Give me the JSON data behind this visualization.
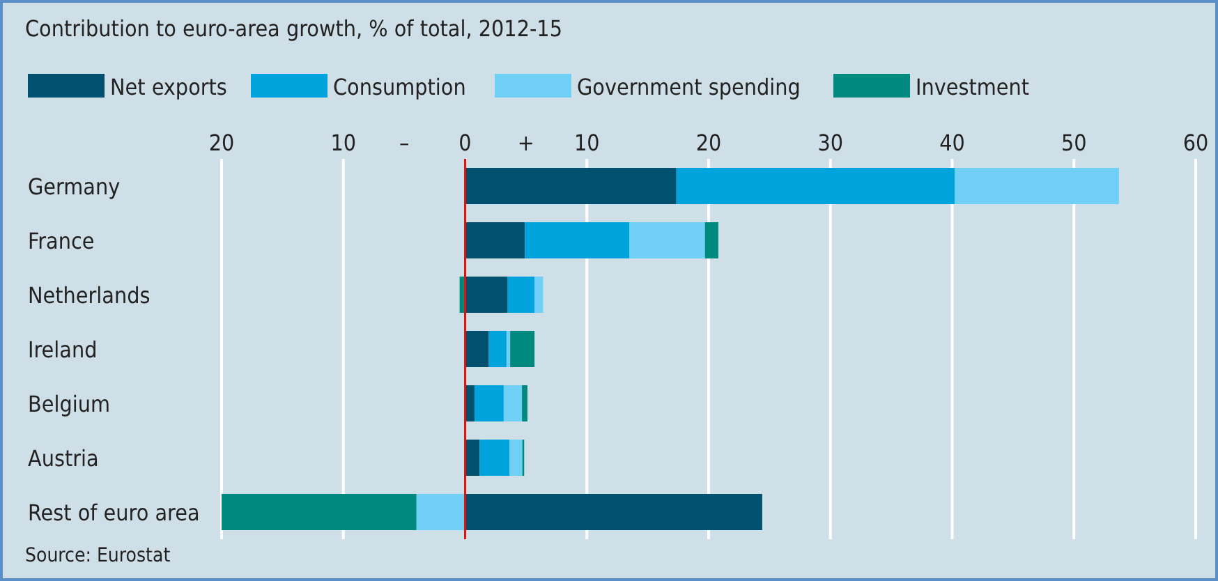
{
  "chart_data": {
    "type": "bar",
    "orientation": "horizontal",
    "stacked": true,
    "title": "Contribution to euro-area growth, % of total, 2012-15",
    "categories": [
      "Germany",
      "France",
      "Netherlands",
      "Ireland",
      "Belgium",
      "Austria",
      "Rest of euro area"
    ],
    "series": [
      {
        "name": "Net exports",
        "color": "#005070",
        "values": [
          17.35,
          4.9,
          3.5,
          1.95,
          0.77,
          1.2,
          24.4
        ]
      },
      {
        "name": "Consumption",
        "color": "#00a3dc",
        "values": [
          22.85,
          8.6,
          2.2,
          1.45,
          2.4,
          2.45,
          null
        ]
      },
      {
        "name": "Government spending",
        "color": "#6fcff5",
        "values": [
          13.5,
          6.2,
          0.7,
          0.3,
          1.5,
          1.05,
          -4
        ]
      },
      {
        "name": "Investment",
        "color": "#00897e",
        "values": [
          null,
          1.1,
          -0.45,
          2.0,
          0.45,
          0.15,
          -16
        ]
      }
    ],
    "xlim": [
      -20,
      60
    ],
    "xticks": [
      {
        "value": -20,
        "label": "20"
      },
      {
        "value": -10,
        "label": "10"
      },
      {
        "value": -5,
        "label": "–"
      },
      0,
      {
        "value": 5,
        "label": "+"
      },
      10,
      20,
      30,
      40,
      50,
      60
    ],
    "grid": "x",
    "legend": "top left",
    "ref_lines": [
      {
        "axis": "x",
        "value": 0,
        "color": "#e3120b"
      }
    ],
    "annotations": [
      "Source: Eurostat"
    ]
  }
}
